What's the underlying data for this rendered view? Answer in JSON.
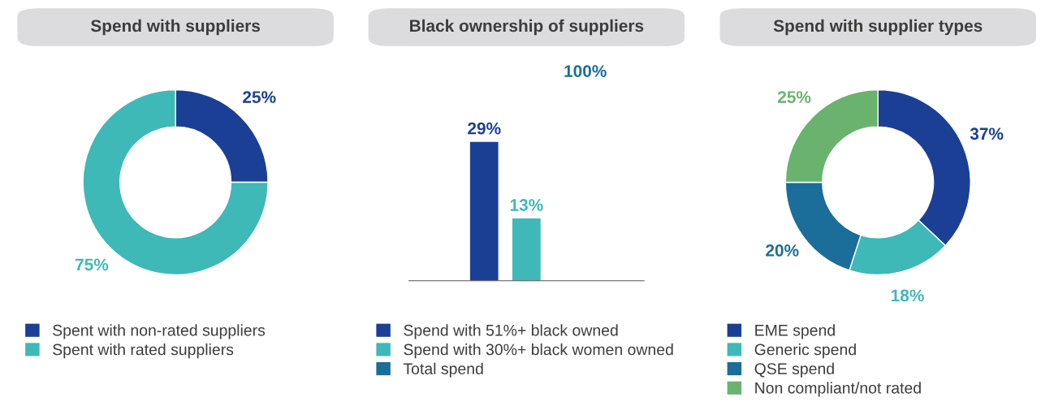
{
  "chart_data": [
    {
      "type": "donut",
      "title": "Spend with suppliers",
      "categories": [
        "Spent with non-rated suppliers",
        "Spent with rated suppliers"
      ],
      "values": [
        25,
        75
      ],
      "colors": [
        "#1c3f96",
        "#3fb8b8"
      ],
      "value_labels": [
        "25%",
        "75%"
      ],
      "legend": "bottom"
    },
    {
      "type": "bar",
      "title": "Black ownership of suppliers",
      "categories": [
        null
      ],
      "series": [
        {
          "name": "Spend with 51%+ black owned",
          "color": "#1c3f96",
          "values": [
            29
          ],
          "value_labels": [
            "29%"
          ]
        },
        {
          "name": "Spend with 30%+ black women owned",
          "color": "#3fb8b8",
          "values": [
            13
          ],
          "value_labels": [
            "13%"
          ]
        },
        {
          "name": "Total spend",
          "color": "#1a6e99",
          "values": [
            null
          ],
          "value_labels": [
            null
          ]
        }
      ],
      "annotations": [
        "100%"
      ],
      "legend": "bottom"
    },
    {
      "type": "donut",
      "title": "Spend with supplier types",
      "categories": [
        "EME spend",
        "Generic spend",
        "QSE spend",
        "Non compliant/not rated"
      ],
      "values": [
        37,
        18,
        20,
        25
      ],
      "colors": [
        "#1c3f96",
        "#3fb8b8",
        "#1a6e99",
        "#6ab36f"
      ],
      "value_labels": [
        "37%",
        "18%",
        "20%",
        "25%"
      ],
      "legend": "bottom"
    }
  ]
}
